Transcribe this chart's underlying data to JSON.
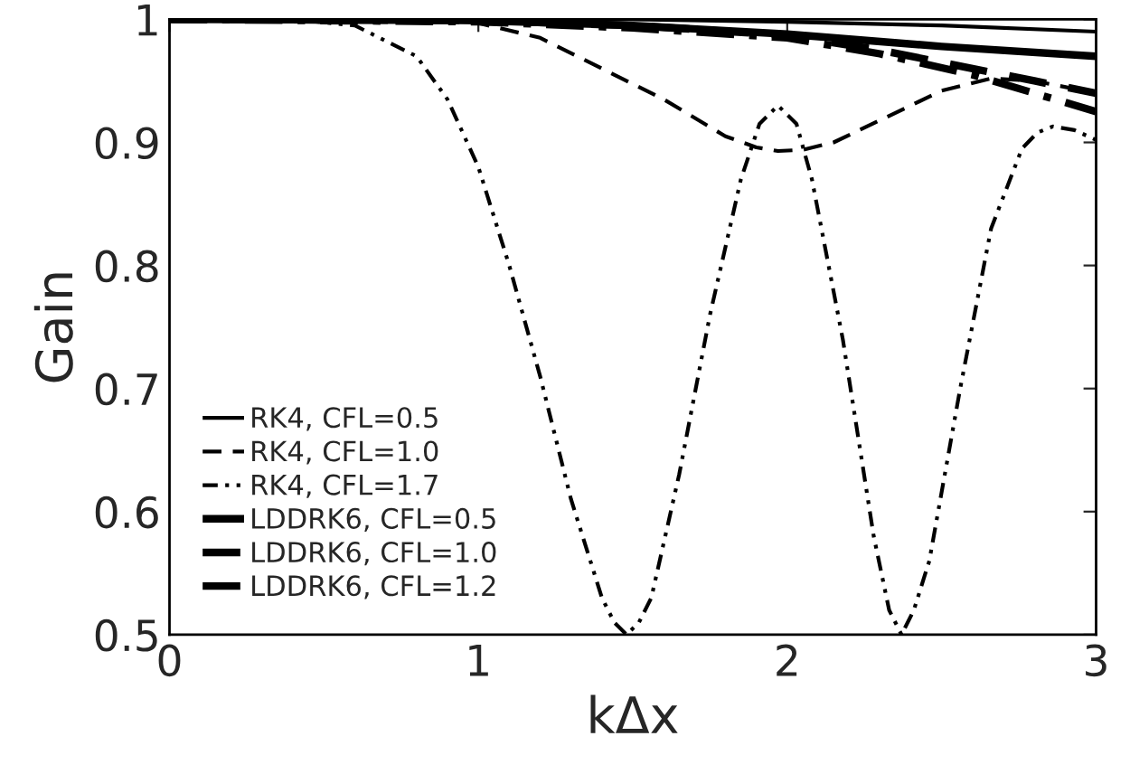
{
  "chart_data": {
    "type": "line",
    "xlabel": "kΔx",
    "ylabel": "Gain",
    "xlim": [
      0,
      3
    ],
    "ylim": [
      0.5,
      1
    ],
    "xticks": [
      0,
      1,
      2,
      3
    ],
    "yticks": [
      0.5,
      0.6,
      0.7,
      0.8,
      0.9,
      1
    ],
    "grid": false,
    "legend": "bottom left",
    "marker": "none",
    "series": [
      {
        "name": "RK4, CFL=0.5",
        "color": "#000000",
        "line_style": "solid",
        "x": [
          0,
          1.5,
          2.0,
          2.5,
          3.0
        ],
        "values": [
          1,
          1,
          0.998,
          0.995,
          0.99
        ]
      },
      {
        "name": "RK4, CFL=1.0",
        "color": "#000000",
        "line_style": "dashed",
        "x": [
          0,
          0.8,
          1.0,
          1.2,
          1.4,
          1.6,
          1.8,
          1.9,
          1.97,
          2.05,
          2.15,
          2.3,
          2.5,
          2.66,
          2.8,
          3.0
        ],
        "values": [
          1,
          0.999,
          0.997,
          0.985,
          0.96,
          0.935,
          0.905,
          0.896,
          0.893,
          0.894,
          0.9,
          0.918,
          0.942,
          0.952,
          0.95,
          0.94
        ]
      },
      {
        "name": "RK4, CFL=1.7",
        "color": "#000000",
        "line_style": "dashdotdot",
        "x": [
          0,
          0.4,
          0.6,
          0.8,
          0.9,
          1.0,
          1.1,
          1.2,
          1.3,
          1.4,
          1.44,
          1.48,
          1.52,
          1.56,
          1.65,
          1.75,
          1.85,
          1.91,
          1.97,
          2.03,
          2.08,
          2.18,
          2.28,
          2.33,
          2.37,
          2.41,
          2.46,
          2.56,
          2.66,
          2.76,
          2.81,
          2.86,
          2.93,
          3.0
        ],
        "values": [
          1,
          1,
          0.995,
          0.97,
          0.935,
          0.88,
          0.8,
          0.71,
          0.61,
          0.53,
          0.51,
          0.5,
          0.51,
          0.53,
          0.63,
          0.76,
          0.87,
          0.915,
          0.93,
          0.915,
          0.87,
          0.74,
          0.58,
          0.52,
          0.5,
          0.52,
          0.56,
          0.7,
          0.83,
          0.895,
          0.908,
          0.913,
          0.91,
          0.902
        ]
      },
      {
        "name": "LDDRK6, CFL=0.5",
        "color": "#000000",
        "line_style": "solid",
        "x": [
          0,
          1.0,
          1.5,
          2.0,
          2.5,
          3.0
        ],
        "values": [
          1,
          0.999,
          0.995,
          0.988,
          0.978,
          0.97
        ]
      },
      {
        "name": "LDDRK6, CFL=1.0",
        "color": "#000000",
        "line_style": "dashed",
        "x": [
          0,
          1.0,
          1.5,
          2.0,
          2.3,
          2.6,
          2.8,
          3.0
        ],
        "values": [
          1,
          0.999,
          0.995,
          0.987,
          0.975,
          0.96,
          0.95,
          0.94
        ]
      },
      {
        "name": "LDDRK6, CFL=1.2",
        "color": "#000000",
        "line_style": "dashdot",
        "x": [
          0,
          1.0,
          1.5,
          2.0,
          2.3,
          2.6,
          2.8,
          3.0
        ],
        "values": [
          1,
          0.998,
          0.993,
          0.985,
          0.972,
          0.955,
          0.94,
          0.925
        ]
      }
    ]
  }
}
